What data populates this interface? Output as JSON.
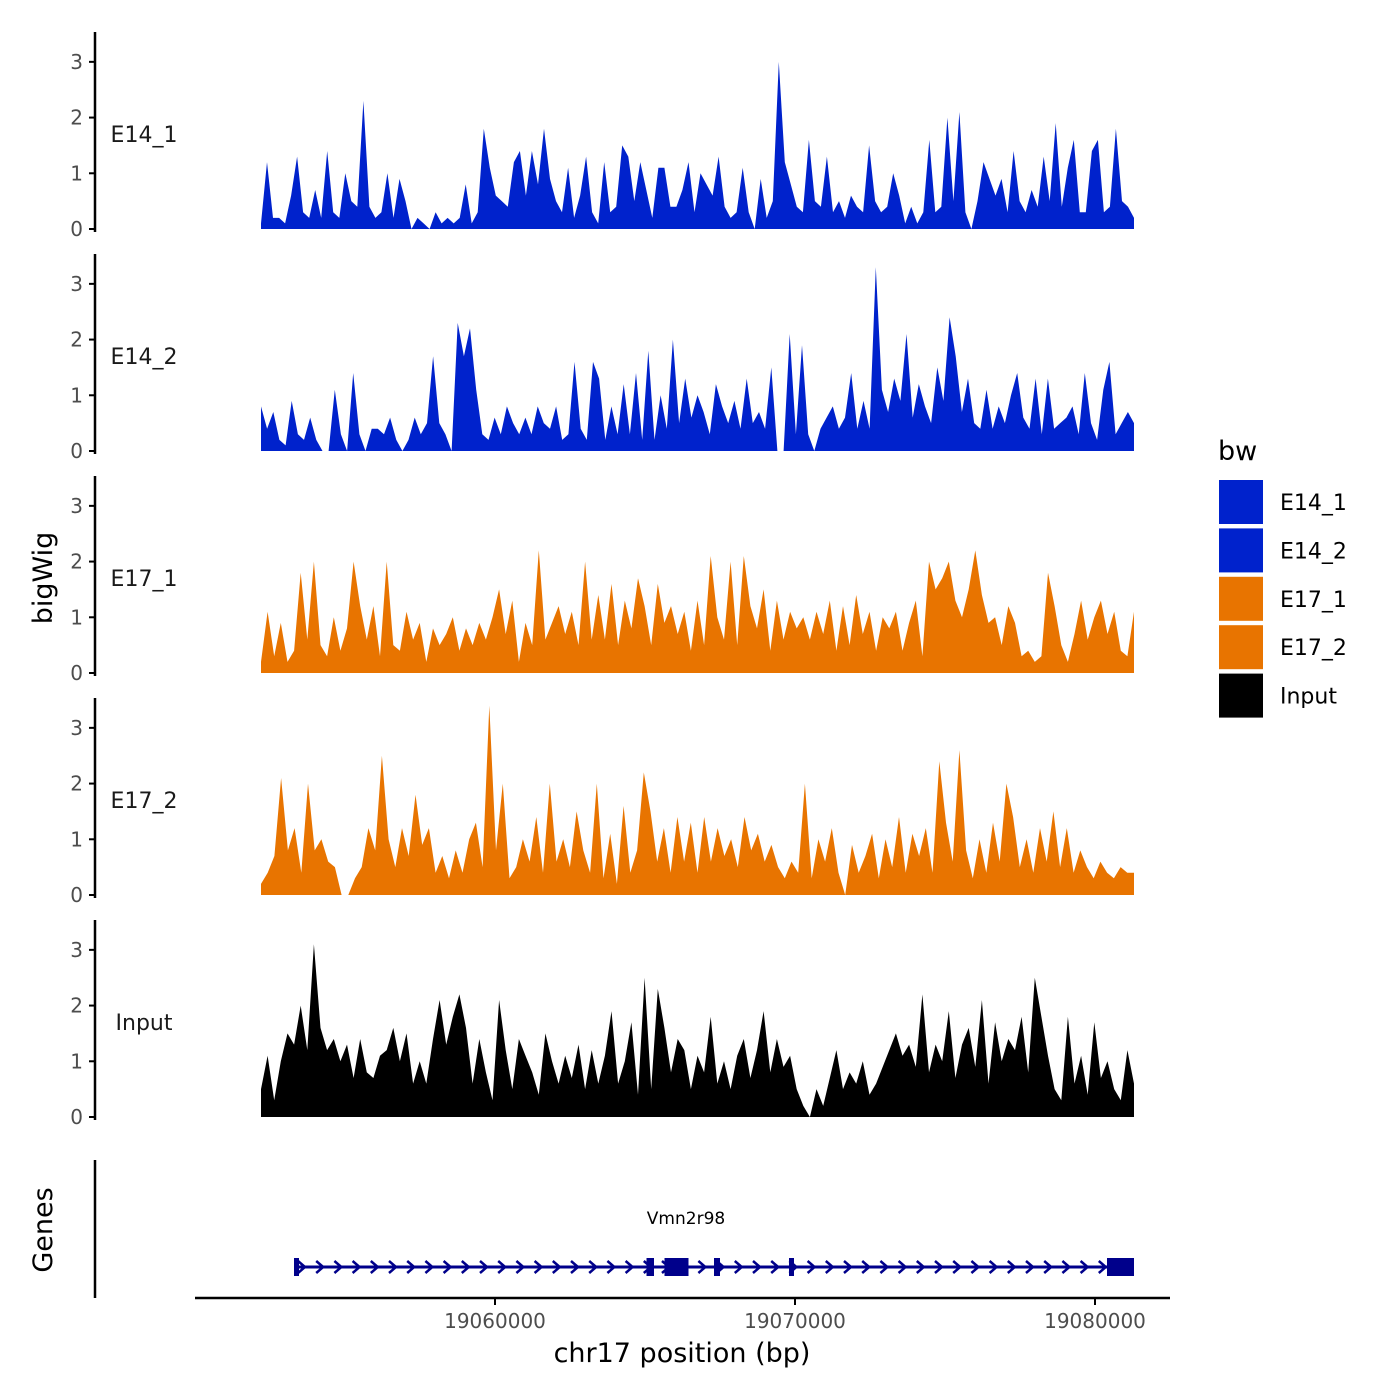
{
  "chart_data": {
    "type": "area",
    "title": "",
    "ylabel": "bigWig",
    "xlabel": "chr17 position (bp)",
    "genes_label": "Genes",
    "xlim": [
      19050000,
      19082500
    ],
    "x_start": 19052200,
    "x_end": 19081300,
    "ylim": [
      0,
      3.5
    ],
    "y_ticks": [
      0,
      1,
      2,
      3
    ],
    "x_ticks": [
      19060000,
      19070000,
      19080000
    ],
    "x_tick_labels": [
      "19060000",
      "19070000",
      "19080000"
    ],
    "legend": {
      "title": "bw",
      "position": "right",
      "entries": [
        {
          "name": "E14_1",
          "color": "#0022CC"
        },
        {
          "name": "E14_2",
          "color": "#0022CC"
        },
        {
          "name": "E17_1",
          "color": "#E87400"
        },
        {
          "name": "E17_2",
          "color": "#E87400"
        },
        {
          "name": "Input",
          "color": "#000000"
        }
      ]
    },
    "series": [
      {
        "name": "E14_1",
        "color": "#0022CC",
        "values": [
          0.1,
          1.2,
          0.2,
          0.2,
          0.1,
          0.6,
          1.3,
          0.3,
          0.2,
          0.7,
          0.2,
          1.4,
          0.3,
          0.2,
          1.0,
          0.5,
          0.4,
          2.3,
          0.4,
          0.2,
          0.3,
          1.0,
          0.2,
          0.9,
          0.5,
          0,
          0.2,
          0.1,
          0,
          0.3,
          0.1,
          0.2,
          0.1,
          0.2,
          0.8,
          0.1,
          0.3,
          1.8,
          1.1,
          0.6,
          0.5,
          0.4,
          1.2,
          1.4,
          0.6,
          1.4,
          0.8,
          1.8,
          0.9,
          0.5,
          0.3,
          1.1,
          0.2,
          0.6,
          1.3,
          0.3,
          0.1,
          1.2,
          0.3,
          0.4,
          1.5,
          1.3,
          0.5,
          1.2,
          0.7,
          0.2,
          1.1,
          1.1,
          0.4,
          0.4,
          0.7,
          1.2,
          0.3,
          1.0,
          0.8,
          0.6,
          1.3,
          0.4,
          0.2,
          0.3,
          1.1,
          0.3,
          0,
          0.9,
          0.2,
          0.5,
          3.0,
          1.2,
          0.8,
          0.4,
          0.3,
          1.6,
          0.5,
          0.4,
          1.3,
          0.3,
          0.5,
          0.2,
          0.6,
          0.4,
          0.3,
          1.5,
          0.5,
          0.3,
          0.4,
          1.0,
          0.6,
          0.1,
          0.4,
          0.1,
          0.3,
          1.6,
          0.3,
          0.4,
          2.0,
          0.5,
          2.1,
          0.3,
          0,
          0.5,
          1.2,
          0.9,
          0.6,
          0.9,
          0.3,
          1.4,
          0.5,
          0.3,
          0.7,
          0.4,
          1.3,
          0.5,
          1.9,
          0.4,
          1.1,
          1.6,
          0.3,
          0.3,
          1.4,
          1.6,
          0.3,
          0.4,
          1.8,
          0.5,
          0.4,
          0.2
        ]
      },
      {
        "name": "E14_2",
        "color": "#0022CC",
        "values": [
          0.8,
          0.4,
          0.7,
          0.2,
          0.1,
          0.9,
          0.3,
          0.2,
          0.6,
          0.2,
          0,
          0,
          1.1,
          0.3,
          0,
          1.4,
          0.3,
          0,
          0.4,
          0.4,
          0.3,
          0.6,
          0.2,
          0,
          0.2,
          0.6,
          0.3,
          0.5,
          1.7,
          0.5,
          0.3,
          0,
          2.3,
          1.7,
          2.2,
          1.1,
          0.3,
          0.2,
          0.6,
          0.3,
          0.8,
          0.5,
          0.3,
          0.6,
          0.3,
          0.8,
          0.5,
          0.4,
          0.8,
          0.2,
          0.3,
          1.6,
          0.4,
          0.2,
          1.6,
          1.3,
          0.2,
          0.8,
          0.3,
          1.2,
          0.3,
          1.4,
          0.2,
          1.8,
          0.2,
          1.0,
          0.4,
          2.0,
          0.5,
          1.3,
          0.6,
          1.0,
          0.7,
          0.3,
          1.2,
          0.8,
          0.5,
          0.9,
          0.4,
          1.3,
          0.5,
          0.7,
          0.4,
          1.5,
          0,
          0,
          2.1,
          0.3,
          1.9,
          0.3,
          0,
          0.4,
          0.6,
          0.8,
          0.4,
          0.6,
          1.4,
          0.4,
          0.9,
          0.4,
          3.3,
          1.1,
          0.7,
          1.3,
          0.9,
          2.1,
          0.6,
          1.2,
          0.8,
          0.5,
          1.5,
          0.9,
          2.4,
          1.7,
          0.7,
          1.3,
          0.5,
          0.4,
          1.1,
          0.4,
          0.8,
          0.5,
          1.0,
          1.4,
          0.6,
          0.4,
          1.3,
          0.3,
          1.3,
          0.4,
          0.5,
          0.6,
          0.8,
          0.3,
          1.4,
          0.5,
          0.2,
          1.1,
          1.6,
          0.3,
          0.5,
          0.7,
          0.5
        ]
      },
      {
        "name": "E17_1",
        "color": "#E87400",
        "values": [
          0.2,
          1.1,
          0.3,
          0.9,
          0.2,
          0.4,
          1.8,
          0.6,
          2.0,
          0.5,
          0.3,
          1.0,
          0.4,
          0.8,
          2.0,
          1.2,
          0.6,
          1.2,
          0.3,
          2.0,
          0.5,
          0.4,
          1.1,
          0.6,
          0.9,
          0.2,
          0.8,
          0.5,
          0.7,
          1.0,
          0.4,
          0.8,
          0.5,
          0.9,
          0.6,
          1.0,
          1.5,
          0.7,
          1.3,
          0.2,
          0.9,
          0.5,
          2.2,
          0.6,
          0.9,
          1.2,
          0.7,
          1.1,
          0.5,
          2.0,
          0.6,
          1.4,
          0.6,
          1.6,
          0.5,
          1.3,
          0.8,
          1.7,
          1.2,
          0.5,
          1.6,
          0.9,
          1.2,
          0.7,
          1.1,
          0.4,
          1.3,
          0.5,
          2.1,
          1.0,
          0.6,
          2.0,
          0.5,
          2.1,
          1.2,
          0.8,
          1.5,
          0.4,
          1.3,
          0.6,
          1.1,
          0.8,
          1.0,
          0.6,
          1.1,
          0.7,
          1.3,
          0.4,
          1.2,
          0.5,
          1.4,
          0.7,
          1.1,
          0.4,
          1.0,
          0.8,
          1.1,
          0.4,
          0.9,
          1.3,
          0.3,
          2.0,
          1.5,
          1.7,
          2.0,
          1.3,
          1.0,
          1.5,
          2.2,
          1.4,
          0.9,
          1.0,
          0.5,
          1.2,
          0.9,
          0.3,
          0.4,
          0.2,
          0.3,
          1.8,
          1.2,
          0.5,
          0.2,
          0.7,
          1.3,
          0.6,
          1.0,
          1.3,
          0.7,
          1.1,
          0.4,
          0.3,
          1.1
        ]
      },
      {
        "name": "E17_2",
        "color": "#E87400",
        "values": [
          0.2,
          0.4,
          0.7,
          2.1,
          0.8,
          1.2,
          0.4,
          2.0,
          0.8,
          1.0,
          0.6,
          0.5,
          0,
          0,
          0.3,
          0.5,
          1.2,
          0.8,
          2.5,
          1.0,
          0.5,
          1.2,
          0.7,
          1.8,
          0.9,
          1.2,
          0.4,
          0.7,
          0.3,
          0.8,
          0.4,
          1.0,
          1.3,
          0.5,
          3.4,
          0.8,
          2.0,
          0.3,
          0.5,
          1.0,
          0.6,
          1.4,
          0.4,
          2.0,
          0.6,
          1.0,
          0.5,
          1.5,
          0.8,
          0.4,
          2.0,
          0.3,
          1.1,
          0.2,
          1.6,
          0.4,
          0.8,
          2.2,
          1.5,
          0.6,
          1.2,
          0.4,
          1.4,
          0.6,
          1.3,
          0.4,
          1.4,
          0.6,
          1.2,
          0.7,
          1.0,
          0.5,
          1.4,
          0.8,
          1.1,
          0.6,
          0.9,
          0.5,
          0.3,
          0.6,
          0.4,
          2.0,
          0.3,
          1.0,
          0.6,
          1.2,
          0.4,
          0,
          0.9,
          0.4,
          0.7,
          1.1,
          0.3,
          1.0,
          0.5,
          1.4,
          0.4,
          1.1,
          0.7,
          1.2,
          0.4,
          2.4,
          1.3,
          0.6,
          2.6,
          0.8,
          0.3,
          1.0,
          0.4,
          1.3,
          0.6,
          2.0,
          1.4,
          0.5,
          1.0,
          0.4,
          1.2,
          0.6,
          1.5,
          0.5,
          1.2,
          0.4,
          0.8,
          0.5,
          0.3,
          0.6,
          0.4,
          0.3,
          0.5,
          0.4,
          0.4
        ]
      },
      {
        "name": "Input",
        "color": "#000000",
        "values": [
          0.5,
          1.1,
          0.3,
          1.0,
          1.5,
          1.3,
          2.0,
          1.2,
          3.1,
          1.6,
          1.2,
          1.4,
          1.0,
          1.3,
          0.7,
          1.4,
          0.8,
          0.7,
          1.1,
          1.2,
          1.6,
          1.0,
          1.5,
          0.6,
          1.0,
          0.6,
          1.4,
          2.1,
          1.3,
          1.8,
          2.2,
          1.6,
          0.6,
          1.4,
          0.8,
          0.3,
          2.1,
          1.2,
          0.5,
          1.4,
          1.1,
          0.8,
          0.4,
          1.5,
          1.0,
          0.6,
          1.1,
          0.7,
          1.3,
          0.5,
          1.2,
          0.6,
          1.1,
          1.9,
          0.6,
          1.0,
          1.7,
          0.4,
          2.5,
          0.5,
          2.3,
          1.6,
          0.8,
          1.4,
          1.2,
          0.5,
          1.1,
          0.8,
          1.8,
          0.6,
          1.0,
          0.5,
          1.1,
          1.4,
          0.7,
          1.2,
          1.9,
          0.8,
          1.4,
          0.9,
          1.1,
          0.5,
          0.2,
          0,
          0.5,
          0.2,
          0.7,
          1.2,
          0.5,
          0.8,
          0.6,
          1.0,
          0.4,
          0.6,
          0.9,
          1.2,
          1.5,
          1.1,
          1.3,
          0.9,
          2.2,
          0.8,
          1.3,
          1.0,
          1.9,
          0.7,
          1.3,
          1.6,
          0.9,
          2.1,
          0.6,
          1.7,
          1.0,
          1.4,
          1.2,
          1.8,
          0.8,
          2.5,
          1.8,
          1.1,
          0.5,
          0.3,
          1.8,
          0.6,
          1.1,
          0.4,
          1.7,
          0.7,
          1.0,
          0.5,
          0.3,
          1.2,
          0.6
        ]
      }
    ],
    "gene_track": {
      "gene": "Vmn2r98",
      "strand": "+",
      "start": 19053300,
      "end": 19081300,
      "exons": [
        [
          19053300,
          19053450
        ],
        [
          19065050,
          19065300
        ],
        [
          19065650,
          19066450
        ],
        [
          19067300,
          19067500
        ],
        [
          19069800,
          19069900
        ],
        [
          19080400,
          19081300
        ]
      ]
    }
  }
}
